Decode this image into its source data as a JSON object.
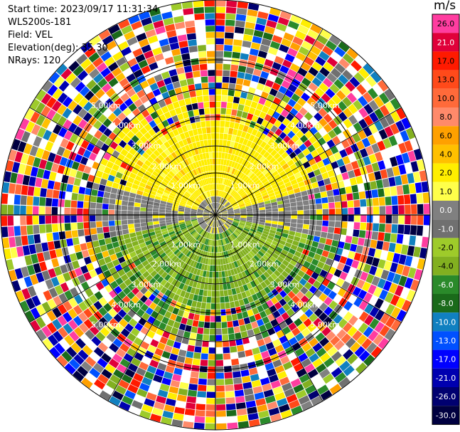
{
  "header": {
    "start_time": "Start time: 2023/09/17 11:31:34",
    "instrument": "WLS200s-181",
    "field": "Field: VEL",
    "elevation": "Elevation(deg): 35.30",
    "nrays": "NRays: 120"
  },
  "colorbar": {
    "unit": "m/s",
    "ticks": [
      "26.0",
      "21.0",
      "17.0",
      "13.0",
      "10.0",
      "8.0",
      "6.0",
      "4.0",
      "2.0",
      "1.0",
      "0.0",
      "-1.0",
      "-2.0",
      "-4.0",
      "-6.0",
      "-8.0",
      "-10.0",
      "-13.0",
      "-17.0",
      "-21.0",
      "-26.0",
      "-30.0"
    ],
    "colors": [
      "#ff3da0",
      "#e0003a",
      "#ff1a00",
      "#ff4a1a",
      "#ff6a3a",
      "#ff8a6a",
      "#ffa000",
      "#ffc000",
      "#ffee00",
      "#ffff4a",
      "#808080",
      "#707070",
      "#9ecb2a",
      "#82b020",
      "#2a8a2a",
      "#1a6a1a",
      "#1080c0",
      "#0050ff",
      "#0000ff",
      "#0000b0",
      "#000070",
      "#000040"
    ]
  },
  "chart_data": {
    "type": "heatmap",
    "projection": "polar (PPI)",
    "field": "VEL",
    "units": "m/s",
    "n_rays": 120,
    "elevation_deg": 35.3,
    "range_ring_labels_km": [
      "1.00km",
      "2.00km",
      "3.00km",
      "4.00km",
      "5.00km"
    ],
    "range_rings_km": [
      1.0,
      2.0,
      3.0,
      4.0,
      5.0
    ],
    "approximate_fields": [
      {
        "region": "north, range < 2.5 km",
        "velocity_mps": 1.5
      },
      {
        "region": "south, range < 3 km",
        "velocity_mps": -4
      },
      {
        "region": "east-west band near center",
        "velocity_mps": 0
      },
      {
        "region": "range > 2.5-3 km",
        "velocity_mps": "noise"
      }
    ],
    "color_scale_min": -30.0,
    "color_scale_max": 26.0
  }
}
